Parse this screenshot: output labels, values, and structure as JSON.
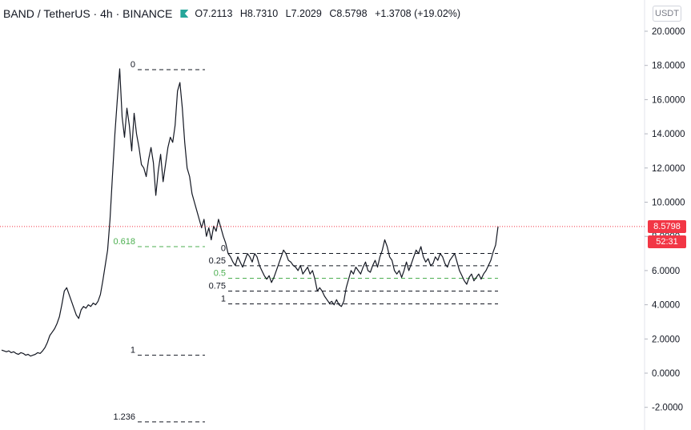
{
  "header": {
    "symbol": "BAND / TetherUS · 4h · BINANCE",
    "open": "O7.2113",
    "high": "H8.7310",
    "low": "L7.2029",
    "close": "C8.5798",
    "change": "+1.3708 (+19.02%)"
  },
  "unit_label": "USDT",
  "last_price_label": "8.5798",
  "countdown_label": "52:31",
  "colors": {
    "price_line": "#f23645",
    "candles": "#131722",
    "fib_black": "#131722",
    "fib_green": "#4caf50",
    "axis_text": "#131722"
  },
  "chart_data": {
    "type": "line",
    "title": "",
    "xlabel": "",
    "ylabel": "",
    "ylim": [
      -3,
      21.2
    ],
    "y_ticks": [
      "20.0000",
      "18.0000",
      "16.0000",
      "14.0000",
      "12.0000",
      "10.0000",
      "8.0000",
      "6.0000",
      "4.0000",
      "2.0000",
      "0.0000",
      "-2.0000"
    ],
    "last_price": 8.5798,
    "series": [
      {
        "values": [
          1.35,
          1.3,
          1.25,
          1.3,
          1.2,
          1.25,
          1.15,
          1.1,
          1.2,
          1.15,
          1.05,
          1.1,
          1.0,
          1.05,
          1.1,
          1.2,
          1.15,
          1.3,
          1.5,
          1.8,
          2.2,
          2.4,
          2.6,
          2.9,
          3.3,
          4.0,
          4.8,
          5.0,
          4.6,
          4.2,
          3.8,
          3.4,
          3.2,
          3.7,
          3.9,
          3.8,
          4.0,
          3.9,
          4.1,
          4.0,
          4.2,
          4.6,
          5.4,
          6.3,
          7.2,
          9.0,
          11.5,
          14.0,
          16.0,
          17.8,
          15.0,
          13.8,
          15.5,
          14.5,
          13.0,
          15.2,
          14.0,
          13.2,
          12.2,
          12.0,
          11.5,
          12.5,
          13.2,
          12.3,
          10.4,
          11.8,
          12.8,
          11.2,
          12.2,
          13.2,
          13.8,
          13.5,
          14.5,
          16.5,
          17.0,
          15.5,
          13.5,
          12.0,
          11.5,
          10.5,
          10.0,
          9.5,
          9.0,
          8.5,
          9.0,
          8.0,
          8.5,
          7.8,
          8.6,
          8.3,
          9.0,
          8.5,
          8.0,
          7.6,
          7.0,
          6.8,
          6.5,
          6.3,
          6.8,
          6.5,
          6.2,
          6.6,
          7.0,
          6.8,
          6.5,
          7.0,
          6.8,
          6.3,
          6.0,
          5.7,
          5.5,
          5.7,
          5.3,
          5.6,
          6.0,
          6.4,
          6.8,
          7.2,
          7.0,
          6.6,
          6.5,
          6.3,
          6.2,
          6.0,
          6.3,
          5.8,
          6.0,
          6.2,
          5.8,
          6.0,
          5.5,
          4.8,
          5.0,
          4.8,
          4.5,
          4.3,
          4.1,
          4.2,
          4.0,
          4.3,
          4.0,
          3.9,
          4.2,
          5.0,
          5.5,
          6.0,
          5.8,
          6.2,
          6.0,
          5.8,
          6.2,
          6.5,
          6.0,
          5.9,
          6.3,
          6.6,
          6.2,
          6.8,
          7.2,
          7.8,
          7.4,
          6.8,
          6.6,
          6.0,
          5.8,
          6.0,
          5.6,
          6.0,
          6.5,
          6.0,
          6.4,
          6.8,
          7.2,
          7.0,
          7.4,
          6.8,
          6.5,
          6.7,
          6.3,
          6.4,
          6.8,
          6.6,
          7.0,
          6.8,
          6.4,
          6.2,
          6.6,
          6.8,
          7.0,
          6.5,
          6.0,
          5.7,
          5.4,
          5.2,
          5.6,
          5.8,
          5.4,
          5.6,
          5.8,
          5.5,
          5.8,
          6.0,
          6.3,
          6.6,
          7.1,
          7.5,
          8.58
        ]
      }
    ],
    "fib_levels": [
      {
        "group": "major",
        "label": "0",
        "price": 17.75,
        "color": "black"
      },
      {
        "group": "major",
        "label": "0.618",
        "price": 7.4,
        "color": "green"
      },
      {
        "group": "major",
        "label": "1",
        "price": 1.05,
        "color": "black"
      },
      {
        "group": "major",
        "label": "1.236",
        "price": -2.85,
        "color": "black"
      },
      {
        "group": "minor",
        "label": "0",
        "price": 7.0,
        "color": "black"
      },
      {
        "group": "minor",
        "label": "0.25",
        "price": 6.28,
        "color": "black"
      },
      {
        "group": "minor",
        "label": "0.5",
        "price": 5.55,
        "color": "green"
      },
      {
        "group": "minor",
        "label": "0.75",
        "price": 4.8,
        "color": "black"
      },
      {
        "group": "minor",
        "label": "1",
        "price": 4.05,
        "color": "black"
      }
    ]
  }
}
